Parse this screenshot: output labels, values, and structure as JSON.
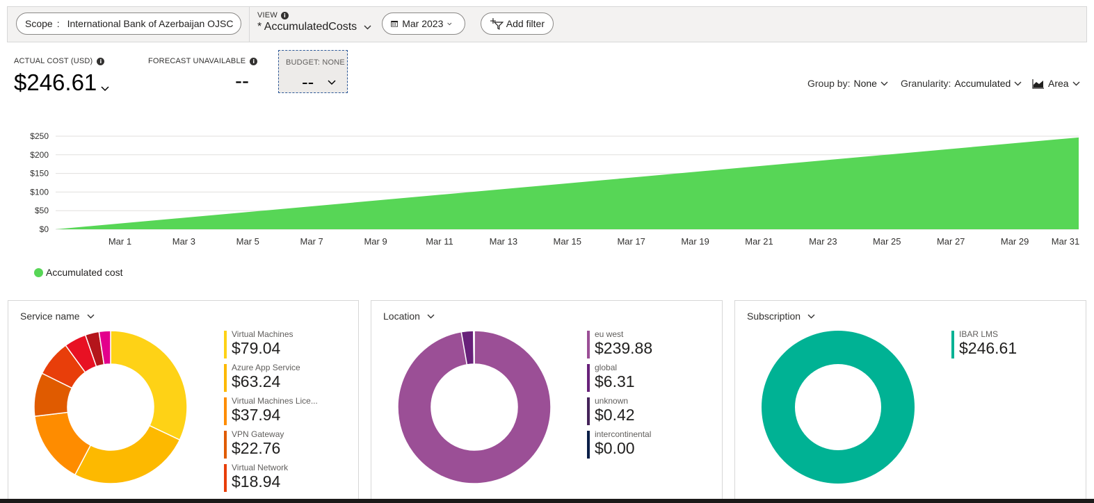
{
  "toolbar": {
    "scope_label": "Scope",
    "scope_colon": ":",
    "scope_value": "International Bank of Azerbaijan OJSC",
    "view_label": "VIEW",
    "view_value": "* AccumulatedCosts",
    "date_value": "Mar 2023",
    "add_filter_label": "Add filter"
  },
  "kpis": {
    "actual_label": "ACTUAL COST (USD)",
    "actual_value": "$246.61",
    "forecast_label": "FORECAST UNAVAILABLE",
    "forecast_value": "--",
    "budget_label": "BUDGET: NONE",
    "budget_value": "--"
  },
  "controls": {
    "group_by_label": "Group by:",
    "group_by_value": "None",
    "granularity_label": "Granularity:",
    "granularity_value": "Accumulated",
    "chart_type_value": "Area"
  },
  "chart_data": {
    "type": "area",
    "x": [
      "Mar 1",
      "Mar 3",
      "Mar 5",
      "Mar 7",
      "Mar 9",
      "Mar 11",
      "Mar 13",
      "Mar 15",
      "Mar 17",
      "Mar 19",
      "Mar 21",
      "Mar 23",
      "Mar 25",
      "Mar 27",
      "Mar 29",
      "Mar 31"
    ],
    "series": [
      {
        "name": "Accumulated cost",
        "day_start": 0,
        "day_end": 31,
        "value_start": 0,
        "value_end": 246.61,
        "color": "#57d656"
      }
    ],
    "y_ticks": [
      "$250",
      "$200",
      "$150",
      "$100",
      "$50",
      "$0"
    ],
    "ylim": [
      0,
      250
    ],
    "legend_label": "Accumulated cost",
    "grid": true
  },
  "cards": [
    {
      "title": "Service name",
      "items": [
        {
          "name": "Virtual Machines",
          "value": "$79.04",
          "color": "#fed216"
        },
        {
          "name": "Azure App Service",
          "value": "$63.24",
          "color": "#fdb900"
        },
        {
          "name": "Virtual Machines Lice...",
          "value": "$37.94",
          "color": "#fe8c00"
        },
        {
          "name": "VPN Gateway",
          "value": "$22.76",
          "color": "#e05b00"
        },
        {
          "name": "Virtual Network",
          "value": "$18.94",
          "color": "#e83e0a"
        }
      ],
      "slices": [
        {
          "value": 79.04,
          "color": "#fed216"
        },
        {
          "value": 63.24,
          "color": "#fdb900"
        },
        {
          "value": 37.94,
          "color": "#fe8c00"
        },
        {
          "value": 22.76,
          "color": "#e05b00"
        },
        {
          "value": 18.94,
          "color": "#e83e0a"
        },
        {
          "value": 11.5,
          "color": "#e81123"
        },
        {
          "value": 7.2,
          "color": "#b4151b"
        },
        {
          "value": 5.99,
          "color": "#e3008c"
        }
      ]
    },
    {
      "title": "Location",
      "items": [
        {
          "name": "eu west",
          "value": "$239.88",
          "color": "#9b4f96"
        },
        {
          "name": "global",
          "value": "$6.31",
          "color": "#68217a"
        },
        {
          "name": "unknown",
          "value": "$0.42",
          "color": "#442359"
        },
        {
          "name": "intercontinental",
          "value": "$0.00",
          "color": "#0a1e47"
        }
      ],
      "slices": [
        {
          "value": 239.88,
          "color": "#9b4f96"
        },
        {
          "value": 6.31,
          "color": "#68217a"
        },
        {
          "value": 0.42,
          "color": "#442359"
        }
      ]
    },
    {
      "title": "Subscription",
      "items": [
        {
          "name": "IBAR LMS",
          "value": "$246.61",
          "color": "#00b294"
        }
      ],
      "slices": [
        {
          "value": 246.61,
          "color": "#00b294"
        }
      ]
    }
  ]
}
